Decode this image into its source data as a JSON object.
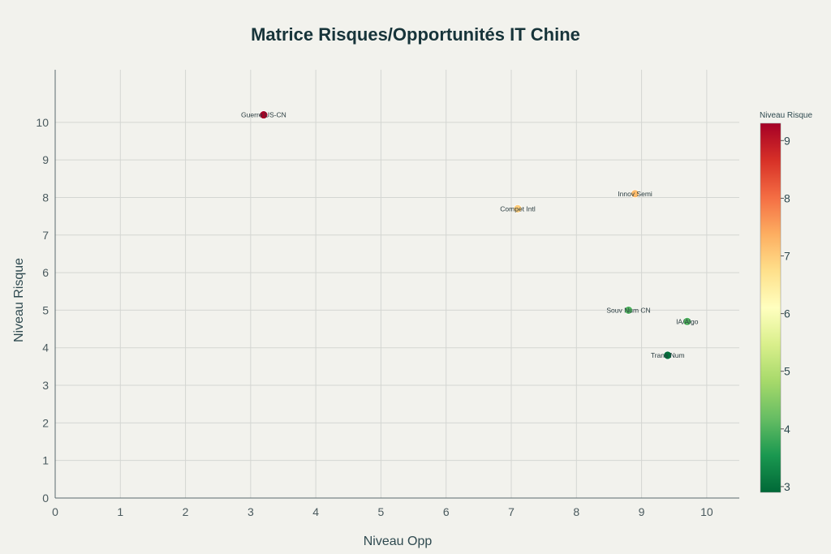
{
  "chart_data": {
    "type": "scatter",
    "title": "Matrice Risques/Opportunités IT Chine",
    "xlabel": "Niveau Opp",
    "ylabel": "Niveau Risque",
    "xlim": [
      0,
      10.5
    ],
    "ylim": [
      0,
      11.4
    ],
    "x_ticks": [
      0,
      1,
      2,
      3,
      4,
      5,
      6,
      7,
      8,
      9,
      10
    ],
    "y_ticks": [
      0,
      1,
      2,
      3,
      4,
      5,
      6,
      7,
      8,
      9,
      10
    ],
    "grid": true,
    "points": [
      {
        "label": "Guerre US-CN",
        "x": 3.2,
        "y": 10.2,
        "risk": 9.3
      },
      {
        "label": "Innov Semi",
        "x": 8.9,
        "y": 8.1,
        "risk": 7.2
      },
      {
        "label": "Compet Intl",
        "x": 7.1,
        "y": 7.7,
        "risk": 7.0
      },
      {
        "label": "Souv Num CN",
        "x": 8.8,
        "y": 5.0,
        "risk": 4.0
      },
      {
        "label": "IA/Algo",
        "x": 9.7,
        "y": 4.7,
        "risk": 4.0
      },
      {
        "label": "Trans Num",
        "x": 9.4,
        "y": 3.8,
        "risk": 3.0
      }
    ],
    "colorbar": {
      "title": "Niveau Risque",
      "min": 2.9,
      "max": 9.3,
      "ticks": [
        3,
        4,
        5,
        6,
        7,
        8,
        9
      ],
      "colorscale": [
        "#006837",
        "#1a9850",
        "#66bd63",
        "#a6d96a",
        "#d9ef8b",
        "#ffffbf",
        "#fee08b",
        "#fdae61",
        "#f46d43",
        "#d73027",
        "#a50026"
      ]
    }
  }
}
